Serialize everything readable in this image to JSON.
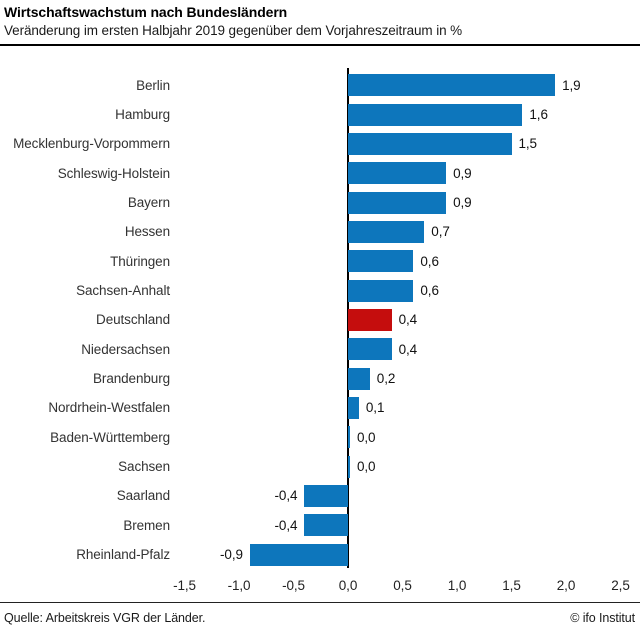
{
  "header": {
    "title": "Wirtschaftswachstum nach Bundesländern",
    "subtitle": "Veränderung im ersten Halbjahr 2019 gegenüber dem Vorjahreszeitraum in %"
  },
  "footer": {
    "source": "Quelle: Arbeitskreis VGR der Länder.",
    "copyright": "© ifo Institut"
  },
  "colors": {
    "bar_blue": "#0d76bc",
    "bar_red": "#c50d0d",
    "axis": "#000000"
  },
  "chart_data": {
    "type": "bar",
    "orientation": "horizontal",
    "title": "Wirtschaftswachstum nach Bundesländern",
    "subtitle": "Veränderung im ersten Halbjahr 2019 gegenüber dem Vorjahreszeitraum in %",
    "categories": [
      "Berlin",
      "Hamburg",
      "Mecklenburg-Vorpommern",
      "Schleswig-Holstein",
      "Bayern",
      "Hessen",
      "Thüringen",
      "Sachsen-Anhalt",
      "Deutschland",
      "Niedersachsen",
      "Brandenburg",
      "Nordrhein-Westfalen",
      "Baden-Württemberg",
      "Sachsen",
      "Saarland",
      "Bremen",
      "Rheinland-Pfalz"
    ],
    "values": [
      1.9,
      1.6,
      1.5,
      0.9,
      0.9,
      0.7,
      0.6,
      0.6,
      0.4,
      0.4,
      0.2,
      0.1,
      0.0,
      0.0,
      -0.4,
      -0.4,
      -0.9
    ],
    "value_labels": [
      "1,9",
      "1,6",
      "1,5",
      "0,9",
      "0,9",
      "0,7",
      "0,6",
      "0,6",
      "0,4",
      "0,4",
      "0,2",
      "0,1",
      "0,0",
      "0,0",
      "-0,4",
      "-0,4",
      "-0,9"
    ],
    "highlight_category": "Deutschland",
    "highlight_index": 8,
    "xlim": [
      -1.5,
      2.5
    ],
    "x_ticks": [
      -1.5,
      -1.0,
      -0.5,
      0.0,
      0.5,
      1.0,
      1.5,
      2.0,
      2.5
    ],
    "x_tick_labels": [
      "-1,5",
      "-1,0",
      "-0,5",
      "0,0",
      "0,5",
      "1,0",
      "1,5",
      "2,0",
      "2,5"
    ],
    "grid": false,
    "legend": false,
    "xlabel": "",
    "ylabel": ""
  }
}
